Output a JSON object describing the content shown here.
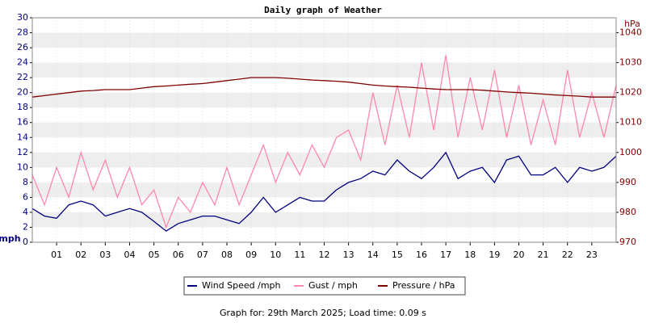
{
  "chart_data": {
    "type": "line",
    "title": "Daily graph of Weather",
    "y_label": "mph",
    "y2_label": "hPa",
    "x": [
      0,
      0.5,
      1,
      1.5,
      2,
      2.5,
      3,
      3.5,
      4,
      4.5,
      5,
      5.5,
      6,
      6.5,
      7,
      7.5,
      8,
      8.5,
      9,
      9.5,
      10,
      10.5,
      11,
      11.5,
      12,
      12.5,
      13,
      13.5,
      14,
      14.5,
      15,
      15.5,
      16,
      16.5,
      17,
      17.5,
      18,
      18.5,
      19,
      19.5,
      20,
      20.5,
      21,
      21.5,
      22,
      22.5,
      23,
      23.5,
      24
    ],
    "series": [
      {
        "name": "Wind Speed /mph",
        "color": "#000080",
        "values": [
          4.5,
          3.5,
          3.2,
          5,
          5.5,
          5,
          3.5,
          4,
          4.5,
          4,
          2.8,
          1.5,
          2.5,
          3,
          3.5,
          3.5,
          3,
          2.5,
          4,
          6,
          4,
          5,
          6,
          5.5,
          5.5,
          7,
          8,
          8.5,
          9.5,
          9,
          11,
          9.5,
          8.5,
          10,
          12,
          8.5,
          9.5,
          10,
          8,
          11,
          11.5,
          9,
          9,
          10,
          8,
          10,
          9.5,
          10,
          11.5
        ]
      },
      {
        "name": "Gust / mph",
        "color": "#ff88aa",
        "values": [
          9,
          5,
          10,
          6,
          12,
          7,
          11,
          6,
          10,
          5,
          7,
          2,
          6,
          4,
          8,
          5,
          10,
          5,
          9,
          13,
          8,
          12,
          9,
          13,
          10,
          14,
          15,
          11,
          20,
          13,
          21,
          14,
          24,
          15,
          25,
          14,
          22,
          15,
          23,
          14,
          21,
          13,
          19,
          13,
          23,
          14,
          20,
          14,
          21
        ]
      },
      {
        "name": "Pressure / hPa",
        "color": "#800000",
        "axis": "y2",
        "values": [
          1018.5,
          1019,
          1019.5,
          1020,
          1020.5,
          1020.7,
          1021,
          1021,
          1021,
          1021.5,
          1022,
          1022.2,
          1022.5,
          1022.8,
          1023,
          1023.5,
          1024,
          1024.5,
          1025,
          1025,
          1025,
          1024.8,
          1024.5,
          1024.2,
          1024,
          1023.8,
          1023.5,
          1023,
          1022.5,
          1022.2,
          1022,
          1021.8,
          1021.5,
          1021.2,
          1021,
          1021,
          1021,
          1020.8,
          1020.5,
          1020.2,
          1020,
          1019.8,
          1019.5,
          1019.2,
          1019,
          1018.8,
          1018.5,
          1018.5,
          1018.5
        ]
      }
    ],
    "xlim": [
      0,
      24
    ],
    "xticks": [
      {
        "value": 1,
        "label": "01"
      },
      {
        "value": 2,
        "label": "02"
      },
      {
        "value": 3,
        "label": "03"
      },
      {
        "value": 4,
        "label": "04"
      },
      {
        "value": 5,
        "label": "05"
      },
      {
        "value": 6,
        "label": "06"
      },
      {
        "value": 7,
        "label": "07"
      },
      {
        "value": 8,
        "label": "08"
      },
      {
        "value": 9,
        "label": "09"
      },
      {
        "value": 10,
        "label": "10"
      },
      {
        "value": 11,
        "label": "11"
      },
      {
        "value": 12,
        "label": "12"
      },
      {
        "value": 13,
        "label": "13"
      },
      {
        "value": 14,
        "label": "14"
      },
      {
        "value": 15,
        "label": "15"
      },
      {
        "value": 16,
        "label": "16"
      },
      {
        "value": 17,
        "label": "17"
      },
      {
        "value": 18,
        "label": "18"
      },
      {
        "value": 19,
        "label": "19"
      },
      {
        "value": 20,
        "label": "20"
      },
      {
        "value": 21,
        "label": "21"
      },
      {
        "value": 22,
        "label": "22"
      },
      {
        "value": 23,
        "label": "23"
      }
    ],
    "ylim": [
      0,
      30
    ],
    "yticks": [
      0,
      2,
      4,
      6,
      8,
      10,
      12,
      14,
      16,
      18,
      20,
      22,
      24,
      26,
      28,
      30
    ],
    "y2lim": [
      970,
      1045
    ],
    "y2ticks": [
      970,
      980,
      990,
      1000,
      1010,
      1020,
      1030,
      1040
    ],
    "grid": true,
    "footer": "Graph for: 29th March 2025; Load time: 0.09 s"
  }
}
